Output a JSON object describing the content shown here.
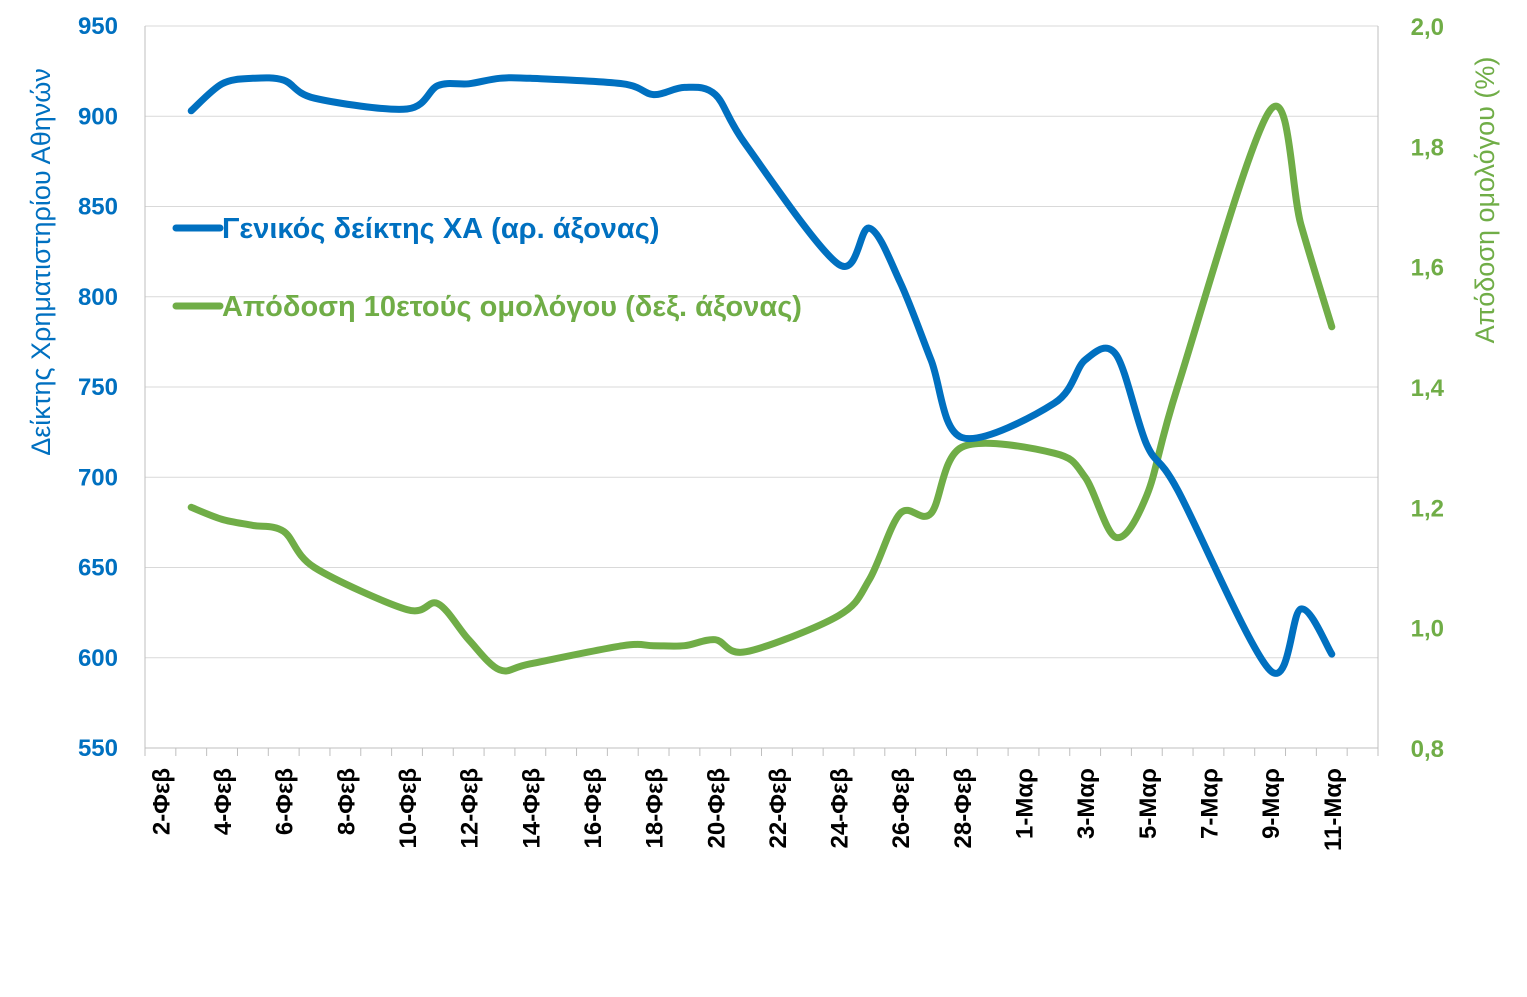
{
  "chart_data": {
    "type": "line",
    "title": "",
    "x": [
      "3-Φεβ",
      "4-Φεβ",
      "5-Φεβ",
      "6-Φεβ",
      "7-Φεβ",
      "10-Φεβ",
      "11-Φεβ",
      "12-Φεβ",
      "13-Φεβ",
      "14-Φεβ",
      "17-Φεβ",
      "18-Φεβ",
      "19-Φεβ",
      "20-Φεβ",
      "21-Φεβ",
      "24-Φεβ",
      "25-Φεβ",
      "26-Φεβ",
      "27-Φεβ",
      "28-Φεβ",
      "2-Μαρ",
      "3-Μαρ",
      "4-Μαρ",
      "5-Μαρ",
      "6-Μαρ",
      "9-Μαρ",
      "10-Μαρ",
      "11-Μαρ"
    ],
    "x_tick_labels": [
      "2-Φεβ",
      "4-Φεβ",
      "6-Φεβ",
      "8-Φεβ",
      "10-Φεβ",
      "12-Φεβ",
      "14-Φεβ",
      "16-Φεβ",
      "18-Φεβ",
      "20-Φεβ",
      "22-Φεβ",
      "24-Φεβ",
      "26-Φεβ",
      "28-Φεβ",
      "1-Μαρ",
      "3-Μαρ",
      "5-Μαρ",
      "7-Μαρ",
      "9-Μαρ",
      "11-Μαρ"
    ],
    "series": [
      {
        "name": "Γενικός δείκτης ΧΑ (αρ. άξονας)",
        "axis": "left",
        "color": "#0070c0",
        "values": [
          903,
          918,
          921,
          920,
          910,
          904,
          917,
          918,
          921,
          921,
          918,
          912,
          916,
          912,
          884,
          818,
          838,
          808,
          765,
          722,
          741,
          765,
          768,
          718,
          693,
          593,
          627,
          602
        ]
      },
      {
        "name": "Απόδοση 10ετούς ομολόγου (δεξ. άξονας)",
        "axis": "right",
        "color": "#70ad47",
        "values": [
          1.2,
          1.18,
          1.17,
          1.16,
          1.1,
          1.03,
          1.04,
          0.98,
          0.93,
          0.94,
          0.97,
          0.97,
          0.97,
          0.98,
          0.96,
          1.02,
          1.08,
          1.19,
          1.19,
          1.3,
          1.29,
          1.25,
          1.15,
          1.22,
          1.4,
          1.86,
          1.67,
          1.5
        ]
      }
    ],
    "ylabel": "Δείκτης Χρηματιστηρίου Αθηνών",
    "ylabel_right": "Απόδοση ομολόγου (%)",
    "ylim": [
      550,
      950
    ],
    "ylim_right": [
      0.8,
      2.0
    ],
    "y_ticks": [
      "550",
      "600",
      "650",
      "700",
      "750",
      "800",
      "850",
      "900",
      "950"
    ],
    "y_ticks_right": [
      "0,8",
      "1,0",
      "1,2",
      "1,4",
      "1,6",
      "1,8",
      "2,0"
    ],
    "grid": true,
    "legend_position": "upper-left inside plot"
  }
}
